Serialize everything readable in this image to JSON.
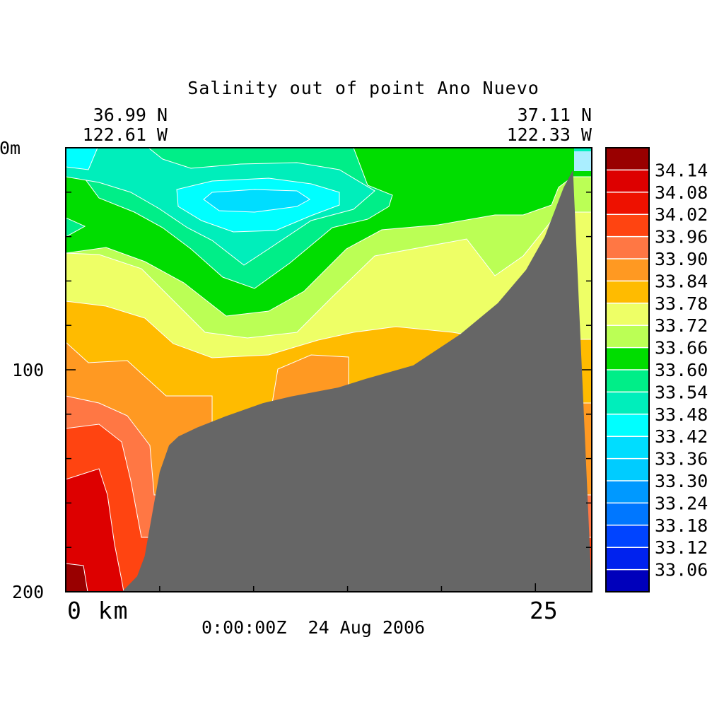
{
  "chart_data": {
    "type": "heatmap",
    "title": "Salinity out of point Ano Nuevo",
    "start_lat": "36.99 N",
    "start_lon": "122.61 W",
    "end_lat": "37.11 N",
    "end_lon": "122.33 W",
    "y_axis": {
      "labels": [
        "0m",
        "100",
        "200"
      ],
      "label_values": [
        0,
        100,
        200
      ],
      "range": [
        0,
        200
      ],
      "minor_step": 20,
      "direction": "depth-down"
    },
    "x_axis": {
      "labels": [
        "0 km",
        "25"
      ],
      "label_values": [
        0,
        25
      ],
      "range": [
        0,
        28
      ],
      "tick_step": 5
    },
    "timestamp": "0:00:00Z  24 Aug 2006",
    "levels": [
      "34.14",
      "34.08",
      "34.02",
      "33.96",
      "33.90",
      "33.84",
      "33.78",
      "33.72",
      "33.66",
      "33.60",
      "33.54",
      "33.48",
      "33.42",
      "33.36",
      "33.30",
      "33.24",
      "33.18",
      "33.12",
      "33.06"
    ],
    "palette": [
      "#990000",
      "#dd0000",
      "#ee1100",
      "#ff4411",
      "#ff7744",
      "#ff9922",
      "#ffbb00",
      "#eeff66",
      "#bbff55",
      "#00dd00",
      "#00ee88",
      "#00eebb",
      "#00ffff",
      "#00ddff",
      "#00ccff",
      "#0099ff",
      "#0077ff",
      "#0044ff",
      "#0022ee",
      "#0000bb"
    ],
    "colors": {
      "land": "#666666"
    },
    "bathymetry": {
      "units": "x_km, depth_m",
      "points": [
        [
          27.0,
          10
        ],
        [
          26.5,
          18
        ],
        [
          25.5,
          40
        ],
        [
          24.5,
          55
        ],
        [
          23.0,
          70
        ],
        [
          21.0,
          84
        ],
        [
          18.5,
          98
        ],
        [
          16.0,
          104
        ],
        [
          14.5,
          108
        ],
        [
          12.0,
          112
        ],
        [
          10.5,
          115
        ],
        [
          8.5,
          121
        ],
        [
          7.0,
          126
        ],
        [
          6.0,
          130
        ],
        [
          5.5,
          134
        ],
        [
          5.0,
          146
        ],
        [
          4.6,
          165
        ],
        [
          4.2,
          184
        ],
        [
          3.8,
          193
        ],
        [
          3.0,
          200
        ]
      ]
    }
  }
}
